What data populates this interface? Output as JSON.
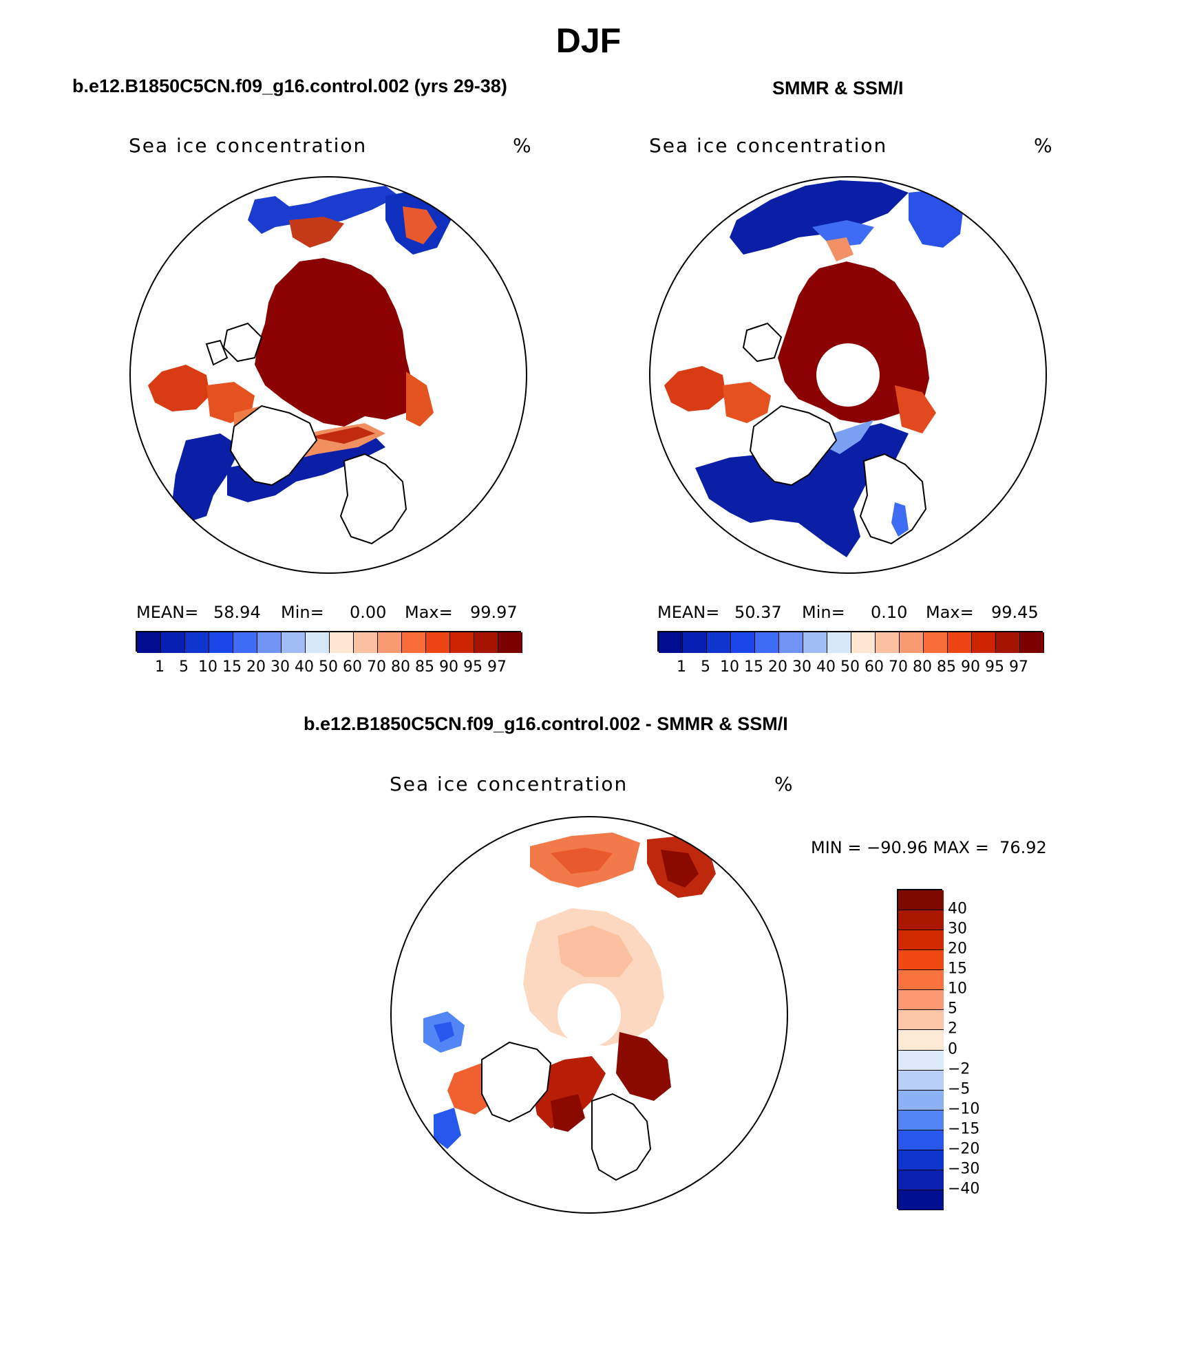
{
  "main_title": "DJF",
  "panels": [
    {
      "title": "b.e12.B1850C5CN.f09_g16.control.002 (yrs 29-38)",
      "variable": "Sea ice concentration",
      "units": "%",
      "stats": {
        "mean_label": "MEAN=",
        "mean": "58.94",
        "min_label": "Min=",
        "min": "0.00",
        "max_label": "Max=",
        "max": "99.97"
      }
    },
    {
      "title": "SMMR & SSM/I",
      "variable": "Sea ice concentration",
      "units": "%",
      "stats": {
        "mean_label": "MEAN=",
        "mean": "50.37",
        "min_label": "Min=",
        "min": "0.10",
        "max_label": "Max=",
        "max": "99.45"
      }
    }
  ],
  "difference": {
    "title": "b.e12.B1850C5CN.f09_g16.control.002 - SMMR & SSM/I",
    "variable": "Sea ice concentration",
    "units": "%",
    "minmax": "MIN = −90.96 MAX =  76.92",
    "colorbar_labels": [
      "40",
      "30",
      "20",
      "15",
      "10",
      "5",
      "2",
      "0",
      "−2",
      "−5",
      "−10",
      "−15",
      "−20",
      "−30",
      "−40"
    ],
    "colorbar_colors": [
      "#7d0a00",
      "#ab1800",
      "#d22a00",
      "#f04813",
      "#f9733f",
      "#fb9a72",
      "#fcc5a5",
      "#fde9d6",
      "#dce9f8",
      "#b8d0f7",
      "#8cb1f5",
      "#5285f5",
      "#2857ee",
      "#0f35cf",
      "#0a20b0",
      "#001090"
    ]
  },
  "colorbar": {
    "labels": [
      "1",
      "5",
      "10",
      "15",
      "20",
      "30",
      "40",
      "50",
      "60",
      "70",
      "80",
      "85",
      "90",
      "95",
      "97"
    ],
    "colors": [
      "#000c8f",
      "#0520b2",
      "#0f35cf",
      "#1a46ea",
      "#3f6cf4",
      "#6f94f4",
      "#9fbcf5",
      "#d6e7f9",
      "#fde6d2",
      "#fcc1a0",
      "#fa9a70",
      "#f76c39",
      "#ec4413",
      "#cc2300",
      "#a51400",
      "#7d0000"
    ]
  },
  "colors": {
    "ice_high": "#8b0000",
    "ice_mid": "#e14a1e",
    "ice_low_blue": "#0a1ea6",
    "land": "#ffffff",
    "coast": "#000000"
  }
}
